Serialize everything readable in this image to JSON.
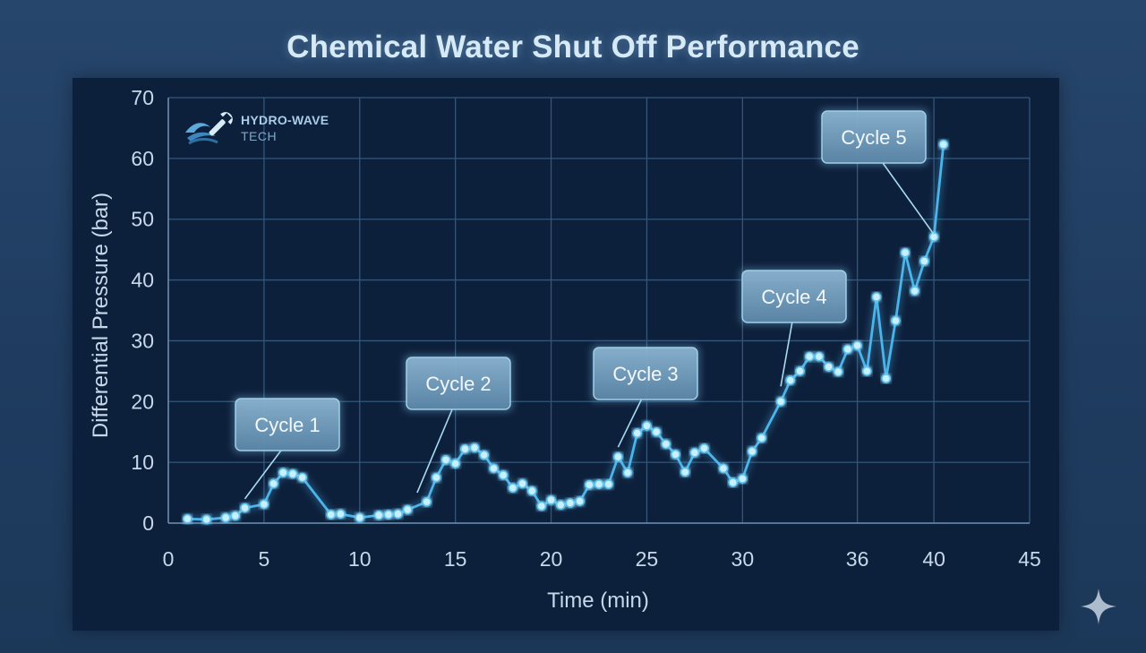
{
  "title": "Chemical Water Shut Off Performance",
  "brand": {
    "name": "HYDRO-WAVE",
    "sub": "TECH"
  },
  "colors": {
    "line": "#4cb4ea",
    "marker_fill": "#c9f0ff",
    "grid": "#33567a",
    "text": "#c7d8e8",
    "callout_fill": "#7fa9c8",
    "callout_border": "#a9d9f2"
  },
  "chart_data": {
    "type": "line",
    "title": "Chemical Water Shut Off Performance",
    "xlabel": "Time (min)",
    "ylabel": "Differential Pressure (bar)",
    "xlim": [
      0,
      45
    ],
    "ylim": [
      0,
      70
    ],
    "x_ticks": [
      0,
      5,
      10,
      15,
      20,
      25,
      30,
      36,
      40,
      45
    ],
    "x_tick_labels": [
      "0",
      "5",
      "10",
      "15",
      "20",
      "25",
      "30",
      "36",
      "40",
      "45"
    ],
    "y_ticks": [
      0,
      10,
      20,
      30,
      40,
      50,
      60,
      70
    ],
    "grid": true,
    "series": [
      {
        "x": [
          1,
          2,
          3,
          3.5,
          4,
          5,
          5.5,
          6,
          6.5,
          7,
          8.5,
          9,
          10,
          11,
          11.5,
          12,
          12.5,
          13.5,
          14,
          14.5,
          15,
          15.5,
          16,
          16.5,
          17,
          17.5,
          18,
          18.5,
          19,
          19.5,
          20,
          20.5,
          21,
          21.5,
          22,
          22.5,
          23,
          23.5,
          24,
          24.5,
          25,
          25.5,
          26,
          26.5,
          27,
          27.5,
          28,
          29,
          29.5,
          30,
          30.5,
          31,
          32,
          32.5,
          33,
          33.5,
          34,
          34.5,
          35,
          35.5,
          36,
          36.5,
          37,
          37.5,
          38,
          38.5,
          39,
          39.5,
          40,
          40.5
        ],
        "y": [
          0.7,
          0.6,
          0.9,
          1.2,
          2.5,
          3.1,
          6.5,
          8.3,
          8.1,
          7.5,
          1.4,
          1.5,
          0.9,
          1.3,
          1.4,
          1.5,
          2.2,
          3.5,
          7.5,
          10.4,
          9.8,
          12.2,
          12.4,
          11.2,
          9.0,
          7.9,
          5.8,
          6.5,
          5.3,
          2.8,
          3.8,
          3.0,
          3.3,
          3.6,
          6.3,
          6.4,
          6.4,
          10.9,
          8.3,
          14.8,
          16.0,
          15.0,
          13.0,
          11.3,
          8.4,
          11.6,
          12.3,
          9.0,
          6.7,
          7.3,
          11.8,
          14.0,
          20.0,
          23.5,
          25.0,
          27.4,
          27.4,
          25.7,
          24.9,
          28.6,
          29.2,
          25.0,
          37.2,
          23.8,
          33.3,
          44.5,
          38.2,
          43.1,
          47.1,
          62.3
        ]
      }
    ],
    "annotations": [
      {
        "text": "Cycle 1",
        "x": 4,
        "y": 4
      },
      {
        "text": "Cycle 2",
        "x": 13,
        "y": 5
      },
      {
        "text": "Cycle 3",
        "x": 23.5,
        "y": 12.5
      },
      {
        "text": "Cycle 4",
        "x": 32,
        "y": 22.5
      },
      {
        "text": "Cycle 5",
        "x": 40,
        "y": 47.5
      }
    ]
  }
}
